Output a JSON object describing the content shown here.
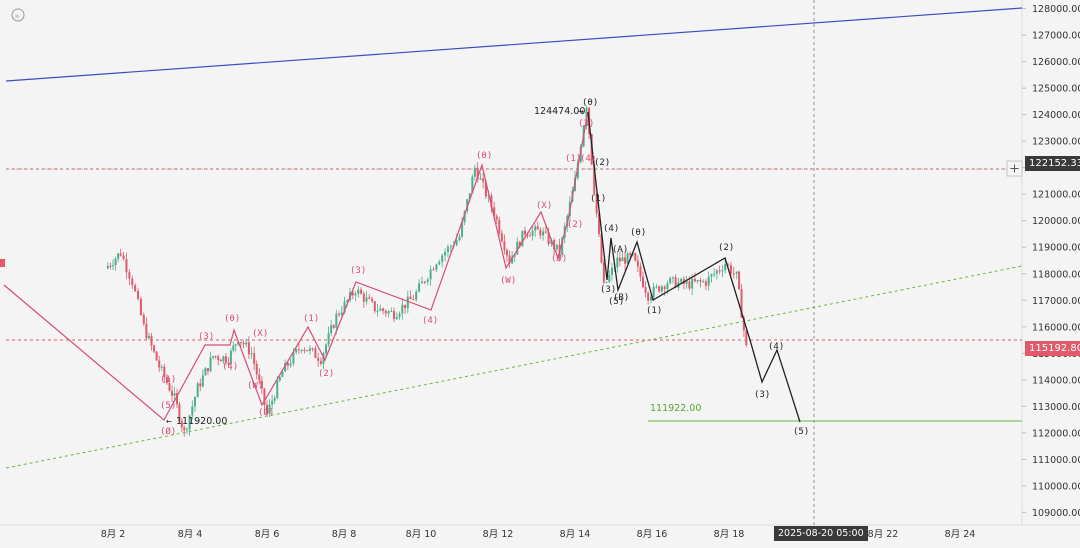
{
  "chart_data": {
    "type": "candlestick",
    "y_axis": {
      "ticks": [
        "128000.00",
        "127000.00",
        "126000.00",
        "125000.00",
        "124000.00",
        "123000.00",
        "122000.00",
        "121000.00",
        "120000.00",
        "119000.00",
        "118000.00",
        "117000.00",
        "116000.00",
        "115000.00",
        "114000.00",
        "113000.00",
        "112000.00",
        "111000.00",
        "110000.00",
        "109000.00"
      ],
      "ylim": [
        108600,
        128400
      ]
    },
    "x_axis": {
      "ticks": [
        "8月 2",
        "8月 4",
        "8月 6",
        "8月 8",
        "8月 10",
        "8月 12",
        "8月 14",
        "8月 16",
        "8月 18",
        "8月 20",
        "8月 22",
        "8月 24"
      ],
      "crosshair_label": "2025-08-20 05:00"
    },
    "price_tags": [
      {
        "text": "122152.33",
        "value": 122152.33,
        "color": "#3a3a3a"
      },
      {
        "text": "115192.80",
        "value": 115192.8,
        "color": "#e05a6a"
      }
    ],
    "annotations": {
      "high_label": "124474.00",
      "low_label": "111920.00",
      "target_label": "111922.00"
    },
    "candles_approx": [
      {
        "x": 1.8,
        "close": 118200
      },
      {
        "x": 2.2,
        "close": 118800
      },
      {
        "x": 2.5,
        "close": 117700
      },
      {
        "x": 2.8,
        "close": 116000
      },
      {
        "x": 3.2,
        "close": 114500
      },
      {
        "x": 3.6,
        "close": 113300
      },
      {
        "x": 3.85,
        "close": 112000
      },
      {
        "x": 4.2,
        "close": 113700
      },
      {
        "x": 4.6,
        "close": 114900
      },
      {
        "x": 5.0,
        "close": 114800
      },
      {
        "x": 5.25,
        "close": 115600
      },
      {
        "x": 5.6,
        "close": 115000
      },
      {
        "x": 6.0,
        "close": 112700
      },
      {
        "x": 6.4,
        "close": 114300
      },
      {
        "x": 6.9,
        "close": 115300
      },
      {
        "x": 7.4,
        "close": 114800
      },
      {
        "x": 7.8,
        "close": 116400
      },
      {
        "x": 8.3,
        "close": 117400
      },
      {
        "x": 8.8,
        "close": 116700
      },
      {
        "x": 9.3,
        "close": 116500
      },
      {
        "x": 9.8,
        "close": 117100
      },
      {
        "x": 10.4,
        "close": 118500
      },
      {
        "x": 11.0,
        "close": 119400
      },
      {
        "x": 11.4,
        "close": 122000
      },
      {
        "x": 11.9,
        "close": 120300
      },
      {
        "x": 12.3,
        "close": 118500
      },
      {
        "x": 12.7,
        "close": 119600
      },
      {
        "x": 13.1,
        "close": 119600
      },
      {
        "x": 13.6,
        "close": 118800
      },
      {
        "x": 14.0,
        "close": 121500
      },
      {
        "x": 14.3,
        "close": 124400
      },
      {
        "x": 14.5,
        "close": 121200
      },
      {
        "x": 14.75,
        "close": 117500
      },
      {
        "x": 15.1,
        "close": 118500
      },
      {
        "x": 15.5,
        "close": 118600
      },
      {
        "x": 15.9,
        "close": 117200
      },
      {
        "x": 16.4,
        "close": 117700
      },
      {
        "x": 16.9,
        "close": 117600
      },
      {
        "x": 17.4,
        "close": 117700
      },
      {
        "x": 17.9,
        "close": 118400
      },
      {
        "x": 18.2,
        "close": 117900
      },
      {
        "x": 18.45,
        "close": 115200
      }
    ]
  }
}
